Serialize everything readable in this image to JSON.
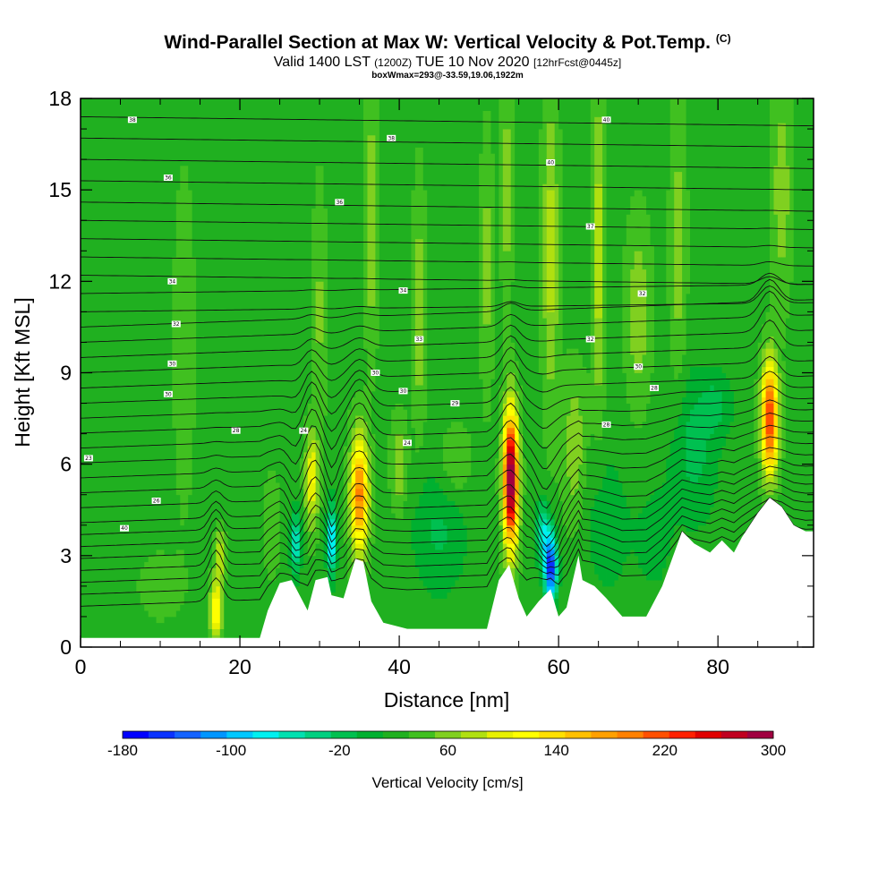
{
  "title": {
    "main": "Wind-Parallel Section at Max W: Vertical Velocity & Pot.Temp.",
    "copyright": "(C)",
    "valid_prefix": "Valid 1400 LST",
    "valid_utc": "(1200Z)",
    "valid_date": "TUE 10 Nov 2020",
    "forecast": "[12hrFcst@0445z]",
    "box_info": "boxWmax=293@-33.59,19.06,1922m"
  },
  "chart_data": {
    "type": "heatmap",
    "xlabel": "Distance [nm]",
    "ylabel": "Height [Kft MSL]",
    "xlim": [
      0,
      92
    ],
    "ylim": [
      0,
      18
    ],
    "x_ticks": [
      0,
      20,
      40,
      60,
      80
    ],
    "y_ticks": [
      0,
      3,
      6,
      9,
      12,
      15,
      18
    ],
    "colorbar": {
      "title": "Vertical Velocity [cm/s]",
      "labels": [
        "-180",
        "-100",
        "-20",
        "60",
        "140",
        "220",
        "300"
      ],
      "min": -180,
      "max": 300,
      "colors": [
        "#0000ff",
        "#0a32ff",
        "#1463ff",
        "#0096ff",
        "#00c8ff",
        "#00f0f0",
        "#00e0b0",
        "#00d080",
        "#00c050",
        "#00b030",
        "#20b020",
        "#40c020",
        "#80d020",
        "#b0e010",
        "#e8f000",
        "#ffff00",
        "#ffe000",
        "#ffc000",
        "#ffa000",
        "#ff8000",
        "#ff5000",
        "#ff2000",
        "#e00000",
        "#c00020",
        "#a00040"
      ]
    },
    "background_w": 25,
    "terrain": [
      [
        0,
        0.3
      ],
      [
        22.5,
        0.3
      ],
      [
        23.5,
        1.2
      ],
      [
        25,
        2.1
      ],
      [
        26.5,
        2.2
      ],
      [
        27.5,
        1.7
      ],
      [
        28.5,
        1.2
      ],
      [
        29.5,
        2.2
      ],
      [
        31,
        2.3
      ],
      [
        31.5,
        1.7
      ],
      [
        33,
        1.6
      ],
      [
        34.5,
        2.9
      ],
      [
        35.5,
        2.8
      ],
      [
        36.5,
        1.5
      ],
      [
        38,
        0.8
      ],
      [
        41,
        0.6
      ],
      [
        51,
        0.6
      ],
      [
        52.5,
        2.2
      ],
      [
        53.8,
        2.7
      ],
      [
        55,
        1.6
      ],
      [
        56,
        1.0
      ],
      [
        57.5,
        1.5
      ],
      [
        59,
        1.9
      ],
      [
        60,
        1.0
      ],
      [
        61,
        1.3
      ],
      [
        62.5,
        3.0
      ],
      [
        63,
        2.2
      ],
      [
        64.5,
        2.0
      ],
      [
        66,
        1.6
      ],
      [
        68,
        1.0
      ],
      [
        71,
        1.0
      ],
      [
        73,
        2.0
      ],
      [
        75.5,
        3.8
      ],
      [
        77,
        3.4
      ],
      [
        79,
        3.1
      ],
      [
        80.5,
        3.5
      ],
      [
        82,
        3.1
      ],
      [
        83,
        3.6
      ],
      [
        85,
        4.4
      ],
      [
        86.5,
        4.9
      ],
      [
        88,
        4.6
      ],
      [
        89.5,
        4.0
      ],
      [
        91,
        3.8
      ],
      [
        92,
        3.8
      ]
    ],
    "features": [
      {
        "x": 54,
        "y": 5.5,
        "w": 293,
        "wx": 0.9,
        "wy": 2.2
      },
      {
        "x": 86.5,
        "y": 7.5,
        "w": 210,
        "wx": 1.0,
        "wy": 1.8
      },
      {
        "x": 35,
        "y": 5.0,
        "w": 170,
        "wx": 1.1,
        "wy": 1.9
      },
      {
        "x": 29,
        "y": 5.5,
        "w": 90,
        "wx": 0.8,
        "wy": 1.5
      },
      {
        "x": 17,
        "y": 1.2,
        "w": 110,
        "wx": 0.7,
        "wy": 1.0
      },
      {
        "x": 17.5,
        "y": 3.0,
        "w": 70,
        "wx": 0.6,
        "wy": 0.8
      },
      {
        "x": 31.5,
        "y": 3.5,
        "w": -120,
        "wx": 0.6,
        "wy": 1.2
      },
      {
        "x": 27,
        "y": 3.4,
        "w": -90,
        "wx": 0.7,
        "wy": 1.0
      },
      {
        "x": 59,
        "y": 2.6,
        "w": -190,
        "wx": 0.8,
        "wy": 1.1
      },
      {
        "x": 58,
        "y": 3.8,
        "w": -80,
        "wx": 0.9,
        "wy": 1.0
      },
      {
        "x": 45,
        "y": 3.8,
        "w": -35,
        "wx": 3.5,
        "wy": 2.2
      },
      {
        "x": 66,
        "y": 4.0,
        "w": -25,
        "wx": 3.0,
        "wy": 2.5
      },
      {
        "x": 72,
        "y": 3.5,
        "w": -20,
        "wx": 2.5,
        "wy": 2.0
      },
      {
        "x": 77,
        "y": 6.5,
        "w": -40,
        "wx": 3.0,
        "wy": 2.5
      },
      {
        "x": 80,
        "y": 8.0,
        "w": -30,
        "wx": 2.0,
        "wy": 1.0
      },
      {
        "x": 47,
        "y": 6.0,
        "w": 30,
        "wx": 2.0,
        "wy": 1.2
      },
      {
        "x": 62,
        "y": 6.5,
        "w": 40,
        "wx": 1.5,
        "wy": 2.5
      },
      {
        "x": 40,
        "y": 6.0,
        "w": 45,
        "wx": 1.0,
        "wy": 1.5
      },
      {
        "x": 24,
        "y": 4.0,
        "w": 25,
        "wx": 1.0,
        "wy": 1.5
      },
      {
        "x": 10,
        "y": 2.0,
        "w": 15,
        "wx": 3.0,
        "wy": 1.2
      },
      {
        "x": 59,
        "y": 13.0,
        "w": 55,
        "wx": 1.0,
        "wy": 5.0
      },
      {
        "x": 65,
        "y": 13.0,
        "w": 60,
        "wx": 0.8,
        "wy": 5.0
      },
      {
        "x": 36.5,
        "y": 14.0,
        "w": 45,
        "wx": 0.8,
        "wy": 4.0
      },
      {
        "x": 42.5,
        "y": 11.0,
        "w": 40,
        "wx": 0.8,
        "wy": 4.0
      },
      {
        "x": 30,
        "y": 11.0,
        "w": 30,
        "wx": 0.8,
        "wy": 4.0
      },
      {
        "x": 13,
        "y": 10.0,
        "w": 25,
        "wx": 1.2,
        "wy": 5.0
      },
      {
        "x": 75,
        "y": 13.0,
        "w": 35,
        "wx": 1.0,
        "wy": 5.0
      },
      {
        "x": 51,
        "y": 12.5,
        "w": 35,
        "wx": 0.8,
        "wy": 4.0
      },
      {
        "x": 70,
        "y": 11.0,
        "w": 40,
        "wx": 1.5,
        "wy": 3.0
      },
      {
        "x": 53.5,
        "y": 15.0,
        "w": 40,
        "wx": 0.7,
        "wy": 3.5
      },
      {
        "x": 88,
        "y": 15.0,
        "w": 40,
        "wx": 1.2,
        "wy": 3.5
      }
    ],
    "isentropes": {
      "levels_y0": [
        1.2,
        1.6,
        2.0,
        2.4,
        2.8,
        3.2,
        3.6,
        4.0,
        4.5,
        5.0,
        5.5,
        6.0,
        6.5,
        7.0,
        7.5,
        8.0,
        8.5,
        9.0,
        9.5,
        10.0,
        10.5,
        11.0,
        11.6,
        12.2,
        12.8,
        13.4,
        14.0,
        14.6,
        15.3,
        16.0,
        16.7,
        17.4
      ],
      "labels": [
        {
          "x": 11,
          "y": 15.4,
          "text": "36"
        },
        {
          "x": 6.5,
          "y": 17.3,
          "text": "38"
        },
        {
          "x": 39,
          "y": 16.7,
          "text": "38"
        },
        {
          "x": 59,
          "y": 15.9,
          "text": "40"
        },
        {
          "x": 66,
          "y": 17.3,
          "text": "40"
        },
        {
          "x": 32.5,
          "y": 14.6,
          "text": "36"
        },
        {
          "x": 64,
          "y": 13.8,
          "text": "37"
        },
        {
          "x": 11.5,
          "y": 12.0,
          "text": "34"
        },
        {
          "x": 40.5,
          "y": 11.7,
          "text": "34"
        },
        {
          "x": 70.5,
          "y": 11.6,
          "text": "32"
        },
        {
          "x": 12,
          "y": 10.6,
          "text": "32"
        },
        {
          "x": 42.5,
          "y": 10.1,
          "text": "33"
        },
        {
          "x": 64,
          "y": 10.1,
          "text": "32"
        },
        {
          "x": 11.5,
          "y": 9.3,
          "text": "30"
        },
        {
          "x": 37,
          "y": 9.0,
          "text": "30"
        },
        {
          "x": 70,
          "y": 9.2,
          "text": "30"
        },
        {
          "x": 11,
          "y": 8.3,
          "text": "30"
        },
        {
          "x": 40.5,
          "y": 8.4,
          "text": "30"
        },
        {
          "x": 47,
          "y": 8.0,
          "text": "29"
        },
        {
          "x": 72,
          "y": 8.5,
          "text": "28"
        },
        {
          "x": 19.5,
          "y": 7.1,
          "text": "28"
        },
        {
          "x": 28,
          "y": 7.1,
          "text": "24"
        },
        {
          "x": 41,
          "y": 6.7,
          "text": "24"
        },
        {
          "x": 66,
          "y": 7.3,
          "text": "28"
        },
        {
          "x": 1,
          "y": 6.2,
          "text": "23"
        },
        {
          "x": 9.5,
          "y": 4.8,
          "text": "26"
        },
        {
          "x": 5.5,
          "y": 3.9,
          "text": "40"
        }
      ]
    }
  }
}
